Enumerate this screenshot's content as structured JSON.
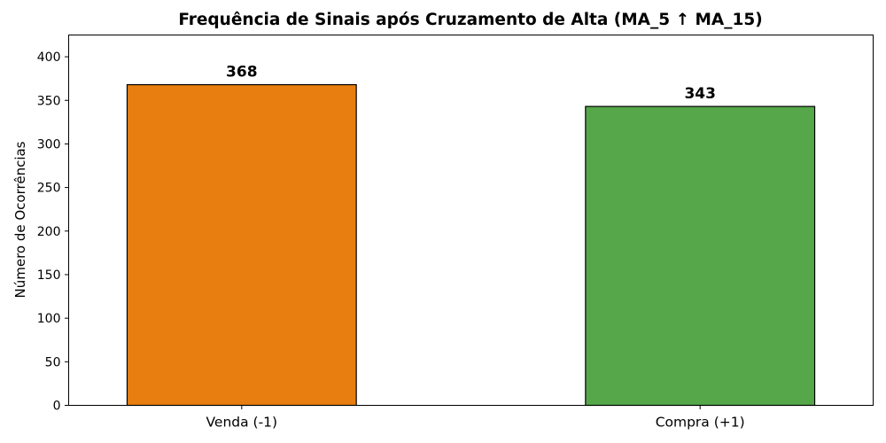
{
  "chart_data": {
    "type": "bar",
    "title": "Frequência de Sinais após Cruzamento de Alta (MA_5 ↑ MA_15)",
    "xlabel": "",
    "ylabel": "Número de Ocorrências",
    "categories": [
      "Venda (-1)",
      "Compra (+1)"
    ],
    "values": [
      368,
      343
    ],
    "colors": [
      "#e87e10",
      "#55a74a"
    ],
    "edge_color": "#000000",
    "data_labels": [
      "368",
      "343"
    ],
    "ylim": [
      0,
      425
    ],
    "yticks": [
      0,
      50,
      100,
      150,
      200,
      250,
      300,
      350,
      400
    ],
    "ytick_labels": [
      "0",
      "50",
      "100",
      "150",
      "200",
      "250",
      "300",
      "350",
      "400"
    ],
    "grid": false,
    "legend": "none"
  }
}
